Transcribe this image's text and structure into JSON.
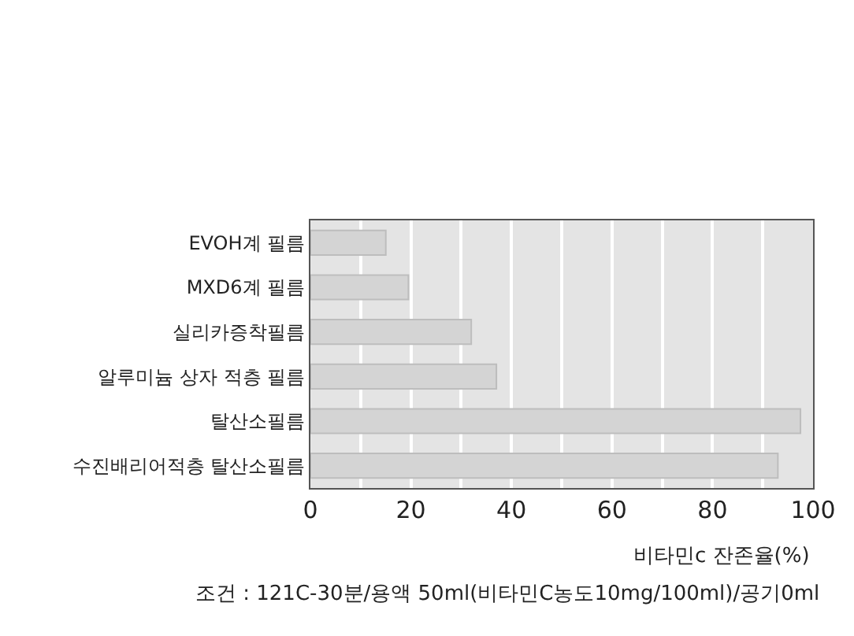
{
  "chart_data": {
    "type": "bar",
    "orientation": "horizontal",
    "categories": [
      "EVOH계 필름",
      "MXD6계 필름",
      "실리카증착필름",
      "알루미늄 상자 적층 필름",
      "탈산소필름",
      "수진배리어적층 탈산소필름"
    ],
    "values": [
      15,
      19.5,
      32,
      37,
      97.5,
      93
    ],
    "color": "#d4d4d4",
    "xlim": [
      0,
      100
    ],
    "xticks": [
      0,
      {
        "value": 10,
        "label": null
      },
      20,
      {
        "value": 30,
        "label": null
      },
      40,
      {
        "value": 50,
        "label": null
      },
      60,
      {
        "value": 70,
        "label": null
      },
      80,
      {
        "value": 90,
        "label": null
      },
      100
    ],
    "grid": "x",
    "xlabel": "비타민c 잔존율(%)",
    "annotations": [
      "조건 : 121C-30분/용액 50ml(비타민C농도10mg/100ml)/공기0ml"
    ]
  }
}
